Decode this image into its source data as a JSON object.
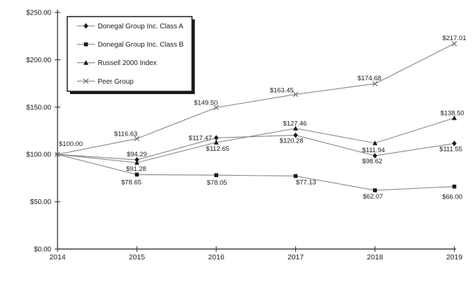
{
  "chart_data": {
    "type": "line",
    "title": "",
    "xlabel": "",
    "ylabel": "",
    "x_labels": [
      "2014",
      "2015",
      "2016",
      "2017",
      "2018",
      "2019"
    ],
    "ylim": [
      0,
      250
    ],
    "grid": false,
    "legend_position": "top-left",
    "y_ticks": [
      {
        "value": 250,
        "label": "$250.00"
      },
      {
        "value": 200,
        "label": "$200.00"
      },
      {
        "value": 150,
        "label": "$150.00"
      },
      {
        "value": 100,
        "label": "$100.00"
      },
      {
        "value": 50,
        "label": "$50.00"
      },
      {
        "value": 0,
        "label": "$0.00"
      }
    ],
    "series": [
      {
        "name": "Donegal Group Inc. Class A",
        "marker": "diamond",
        "show_first_marker": false,
        "values": [
          100.0,
          94.29,
          117.47,
          120.28,
          98.62,
          111.55
        ],
        "labels": [
          null,
          {
            "text": "$94.29",
            "dx": 0,
            "dy": -5
          },
          {
            "text": "$117.47",
            "dx": -23,
            "dy": 3
          },
          {
            "text": "$120.28",
            "dx": -6,
            "dy": 11
          },
          {
            "text": "$98.62",
            "dx": -4,
            "dy": 11
          },
          {
            "text": "$111.55",
            "dx": -5,
            "dy": 11
          }
        ]
      },
      {
        "name": "Donegal Group Inc. Class B",
        "marker": "square",
        "show_first_marker": false,
        "values": [
          100.0,
          78.65,
          78.05,
          77.13,
          62.07,
          66.0
        ],
        "labels": [
          null,
          {
            "text": "$78.65",
            "dx": -8,
            "dy": 14
          },
          {
            "text": "$78.05",
            "dx": 1,
            "dy": 14
          },
          {
            "text": "$77.13",
            "dx": 15,
            "dy": 12
          },
          {
            "text": "$62.07",
            "dx": -3,
            "dy": 12
          },
          {
            "text": "$66.00",
            "dx": -3,
            "dy": 18
          }
        ]
      },
      {
        "name": "Russell 2000 Index",
        "marker": "triangle",
        "show_first_marker": false,
        "values": [
          100.0,
          91.28,
          112.65,
          127.46,
          111.94,
          138.5
        ],
        "labels": [
          null,
          {
            "text": "$91.28",
            "dx": -1,
            "dy": 12
          },
          {
            "text": "$112.65",
            "dx": 2,
            "dy": 12
          },
          {
            "text": "$127.46",
            "dx": -1,
            "dy": -4
          },
          {
            "text": "$111.94",
            "dx": -2,
            "dy": 13
          },
          {
            "text": "$138.50",
            "dx": -3,
            "dy": -4
          }
        ]
      },
      {
        "name": "Peer Group",
        "marker": "x",
        "show_first_marker": true,
        "values": [
          100.0,
          116.63,
          149.5,
          163.45,
          174.68,
          217.01
        ],
        "labels": [
          {
            "text": "$100.00",
            "dx": 2,
            "dy": -12,
            "anchor": "start"
          },
          {
            "text": "$116.63",
            "dx": -16,
            "dy": -4
          },
          {
            "text": "$149.50",
            "dx": -15,
            "dy": -4
          },
          {
            "text": "$163.45",
            "dx": -20,
            "dy": -3
          },
          {
            "text": "$174.68",
            "dx": -8,
            "dy": -5
          },
          {
            "text": "$217.01",
            "dx": 0,
            "dy": -5
          }
        ]
      }
    ],
    "colors": {
      "background": "#ffffff",
      "series_line": "#858585",
      "marker_fill": "#1a1a1a",
      "x_marker_stroke": "#6e6e6e",
      "axis": "#404040",
      "text": "#1a1a1a",
      "legend_border": "#1a1a1a",
      "legend_shadow": "#1a1a1a"
    }
  }
}
